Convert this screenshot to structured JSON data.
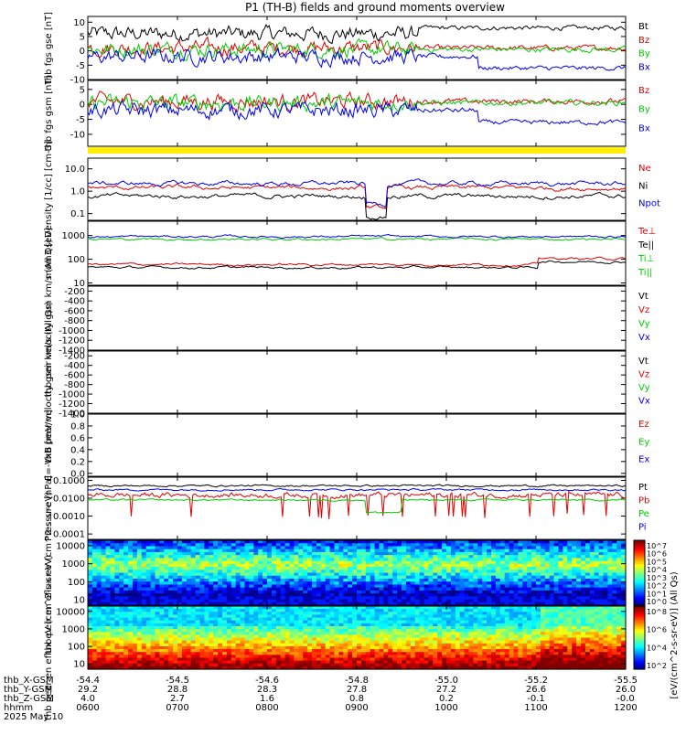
{
  "title": "P1 (TH-B) fields and ground moments overview",
  "date_label": "2025 May 10",
  "colors": {
    "black": "#000000",
    "red": "#e00000",
    "green": "#00cc00",
    "blue": "#0000ee",
    "yellow": "#ffee00"
  },
  "spectro_colorbar_label": "[eV/(cm^2-s-sr-eV)] (All Qs)",
  "colorbar1_ticks": [
    "10^7",
    "10^6",
    "10^5",
    "10^4",
    "10^3",
    "10^2",
    "10^1",
    "10^0"
  ],
  "colorbar2_ticks": [
    "10^8",
    "10^6",
    "10^4",
    "10^2"
  ],
  "ephemeris": {
    "labels": [
      "thb_X-GSM",
      "thb_Y-GSM",
      "thb_Z-GSM",
      "hhmm"
    ],
    "columns": [
      [
        "-54.4",
        "29.2",
        "4.0",
        "0600"
      ],
      [
        "-54.5",
        "28.8",
        "2.7",
        "0700"
      ],
      [
        "-54.6",
        "28.3",
        "1.6",
        "0800"
      ],
      [
        "-54.8",
        "27.8",
        "0.8",
        "0900"
      ],
      [
        "-55.0",
        "27.2",
        "0.2",
        "1000"
      ],
      [
        "-55.2",
        "26.6",
        "-0.1",
        "1100"
      ],
      [
        "-55.5",
        "26.0",
        "-0.0",
        "1200"
      ]
    ]
  },
  "chart_data": [
    {
      "type": "line",
      "ylabel": "thb fgs gse [nT]",
      "ylim": [
        -10,
        12
      ],
      "yticks": [
        "10",
        "5",
        "0",
        "-5",
        "-10"
      ],
      "ytick_values": [
        10,
        5,
        0,
        -5,
        -10
      ],
      "series": [
        {
          "name": "Bt",
          "color": "black"
        },
        {
          "name": "Bz",
          "color": "red"
        },
        {
          "name": "By",
          "color": "green"
        },
        {
          "name": "Bx",
          "color": "blue"
        }
      ]
    },
    {
      "type": "line",
      "ylabel": "thb fgs gsm [nT]",
      "ylim": [
        -14,
        8
      ],
      "yticks": [
        "5",
        "0",
        "-5",
        "-10"
      ],
      "ytick_values": [
        5,
        0,
        -5,
        -10
      ],
      "series": [
        {
          "name": "Bz",
          "color": "red"
        },
        {
          "name": "By",
          "color": "green"
        },
        {
          "name": "Bx",
          "color": "blue"
        }
      ]
    },
    {
      "type": "line",
      "ylabel": "Density [1/cc] [cm-3]",
      "scale": "log",
      "ylim": [
        0.05,
        30
      ],
      "yticks": [
        "10.0",
        "1.0",
        "0.1"
      ],
      "ytick_values": [
        10,
        1,
        0.1
      ],
      "series": [
        {
          "name": "Ne",
          "color": "red"
        },
        {
          "name": "Ni",
          "color": "black"
        },
        {
          "name": "Npot",
          "color": "blue"
        }
      ]
    },
    {
      "type": "line",
      "ylabel": "mom3 [eV]",
      "scale": "log",
      "ylim": [
        8,
        4000
      ],
      "yticks": [
        "1000",
        "100",
        "10"
      ],
      "ytick_values": [
        1000,
        100,
        10
      ],
      "series": [
        {
          "name": "Te⊥",
          "color": "red"
        },
        {
          "name": "Te||",
          "color": "black"
        },
        {
          "name": "Ti⊥",
          "color": "green"
        },
        {
          "name": "Ti||",
          "color": "green"
        }
      ]
    },
    {
      "type": "line",
      "ylabel": "thb peir velocity gsm km/s (All Qs)",
      "ylim": [
        -1400,
        -100
      ],
      "yticks": [
        "-200",
        "-400",
        "-600",
        "-800",
        "-1000",
        "-1200",
        "-1400"
      ],
      "ytick_values": [
        -200,
        -400,
        -600,
        -800,
        -1000,
        -1200,
        -1400
      ],
      "series": [
        {
          "name": "Vt",
          "color": "black"
        },
        {
          "name": "Vz",
          "color": "red"
        },
        {
          "name": "Vy",
          "color": "green"
        },
        {
          "name": "Vx",
          "color": "blue"
        }
      ]
    },
    {
      "type": "line",
      "ylabel": "thb peer velocity gsm km/s (All Qs)",
      "ylim": [
        -1400,
        -100
      ],
      "yticks": [
        "-200",
        "-400",
        "-600",
        "-800",
        "-1000",
        "-1200",
        "-1400"
      ],
      "ytick_values": [
        -200,
        -400,
        -600,
        -800,
        -1000,
        -1200,
        -1400
      ],
      "series": [
        {
          "name": "Vt",
          "color": "black"
        },
        {
          "name": "Vz",
          "color": "red"
        },
        {
          "name": "Vy",
          "color": "green"
        },
        {
          "name": "Vx",
          "color": "blue"
        }
      ]
    },
    {
      "type": "line",
      "ylabel": "E=-VxB [mV/m]",
      "ylim": [
        -0.05,
        1.0
      ],
      "yticks": [
        "1.0",
        "0.8",
        "0.6",
        "0.4",
        "0.2",
        "0.0"
      ],
      "ytick_values": [
        1.0,
        0.8,
        0.6,
        0.4,
        0.2,
        0.0
      ],
      "series": [
        {
          "name": "Ez",
          "color": "red"
        },
        {
          "name": "Ey",
          "color": "green"
        },
        {
          "name": "Ex",
          "color": "blue"
        }
      ]
    },
    {
      "type": "line",
      "ylabel": "Pressure [nPa]",
      "scale": "log",
      "ylim": [
        5e-05,
        0.15
      ],
      "yticks": [
        "0.1000",
        "0.0100",
        "0.0010",
        "0.0001"
      ],
      "ytick_values": [
        0.1,
        0.01,
        0.001,
        0.0001
      ],
      "series": [
        {
          "name": "Pt",
          "color": "black"
        },
        {
          "name": "Pb",
          "color": "red"
        },
        {
          "name": "Pe",
          "color": "green"
        },
        {
          "name": "Pi",
          "color": "blue"
        }
      ]
    },
    {
      "type": "heatmap",
      "ylabel": "thb peir en eflux eV (cm^2-s-sr-eV)",
      "scale": "log",
      "ylim": [
        5,
        20000
      ],
      "yticks": [
        "10000",
        "1000",
        "100",
        "10"
      ],
      "ytick_values": [
        10000,
        1000,
        100,
        10
      ]
    },
    {
      "type": "heatmap",
      "ylabel": "thb peer en eflux eV (cm^2-s-sr-eV)",
      "scale": "log",
      "ylim": [
        5,
        20000
      ],
      "yticks": [
        "10000",
        "1000",
        "100",
        "10"
      ],
      "ytick_values": [
        10000,
        1000,
        100,
        10
      ]
    }
  ]
}
